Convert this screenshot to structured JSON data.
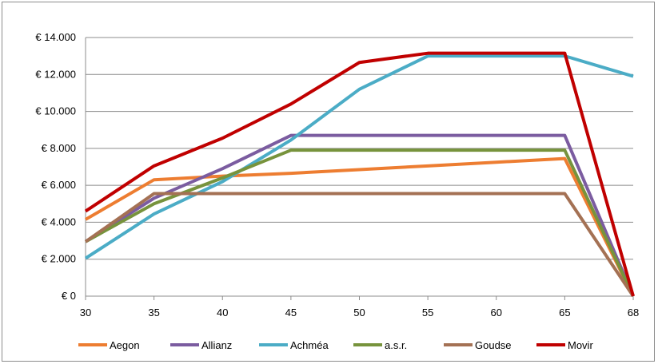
{
  "chart_data": {
    "type": "line",
    "categories": [
      "30",
      "35",
      "40",
      "45",
      "50",
      "55",
      "60",
      "65",
      "68"
    ],
    "ylim": [
      0,
      14000
    ],
    "y_ticks": [
      0,
      2000,
      4000,
      6000,
      8000,
      10000,
      12000,
      14000
    ],
    "y_tick_labels": [
      "€ 0",
      "€ 2.000",
      "€ 4.000",
      "€ 6.000",
      "€ 8.000",
      "€ 10.000",
      "€ 12.000",
      "€ 14.000"
    ],
    "grid": true,
    "legend_position": "bottom",
    "series": [
      {
        "name": "Aegon",
        "color": "#ED7D31",
        "values": [
          4150,
          6300,
          6500,
          6650,
          6850,
          7050,
          7250,
          7450,
          0
        ]
      },
      {
        "name": "Allianz",
        "color": "#7B5CA0",
        "values": [
          2950,
          5300,
          6900,
          8700,
          8700,
          8700,
          8700,
          8700,
          0
        ]
      },
      {
        "name": "Achméa",
        "color": "#4BACC6",
        "values": [
          2050,
          4450,
          6200,
          8450,
          11200,
          13000,
          13000,
          13000,
          11900
        ]
      },
      {
        "name": "a.s.r.",
        "color": "#77933C",
        "values": [
          2950,
          5000,
          6400,
          7900,
          7900,
          7900,
          7900,
          7900,
          0
        ]
      },
      {
        "name": "Goudse",
        "color": "#A47154",
        "values": [
          2950,
          5550,
          5550,
          5550,
          5550,
          5550,
          5550,
          5550,
          0
        ]
      },
      {
        "name": "Movir",
        "color": "#C00000",
        "values": [
          4600,
          7050,
          8550,
          10400,
          12650,
          13150,
          13150,
          13150,
          0
        ]
      }
    ]
  }
}
